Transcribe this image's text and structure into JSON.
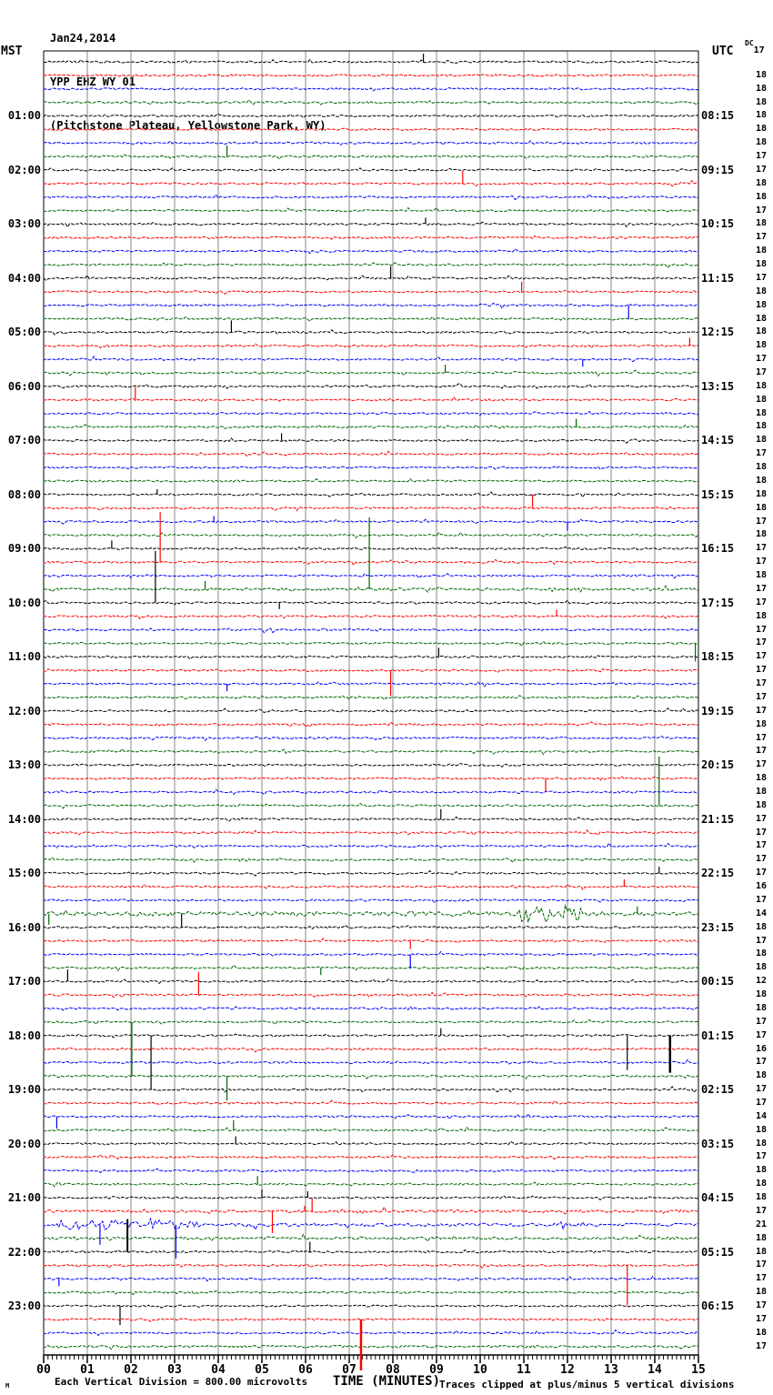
{
  "header": {
    "date": "Jan24,2014",
    "station": "YPP EHZ WY 01",
    "location": "(Pitchstone Plateau, Yellowstone Park, WY)"
  },
  "axes": {
    "left_label": "MST",
    "right_label": "UTC",
    "dc_label": "DC",
    "dc_first": "17",
    "x_title": "TIME (MINUTES)",
    "left_hours": [
      "01:00",
      "02:00",
      "03:00",
      "04:00",
      "05:00",
      "06:00",
      "07:00",
      "08:00",
      "09:00",
      "10:00",
      "11:00",
      "12:00",
      "13:00",
      "14:00",
      "15:00",
      "16:00",
      "17:00",
      "18:00",
      "19:00",
      "20:00",
      "21:00",
      "22:00",
      "23:00"
    ],
    "right_hours": [
      "08:15",
      "09:15",
      "10:15",
      "11:15",
      "12:15",
      "13:15",
      "14:15",
      "15:15",
      "16:15",
      "17:15",
      "18:15",
      "19:15",
      "20:15",
      "21:15",
      "22:15",
      "23:15",
      "00:15",
      "01:15",
      "02:15",
      "03:15",
      "04:15",
      "05:15",
      "06:15"
    ],
    "x_labels": [
      "00",
      "01",
      "02",
      "03",
      "04",
      "05",
      "06",
      "07",
      "08",
      "09",
      "10",
      "11",
      "12",
      "13",
      "14",
      "15"
    ]
  },
  "footer": {
    "glyph": "M",
    "scale": "Each Vertical Division =  800.00 microvolts",
    "clip": "Traces clipped at plus/minus 5 vertical divisions"
  },
  "chart_data": {
    "type": "line",
    "subtype": "helicorder-seismogram",
    "title": "YPP EHZ WY 01 (Pitchstone Plateau, Yellowstone Park, WY) Jan24,2014",
    "xlabel": "TIME (MINUTES)",
    "x_range": [
      0,
      15
    ],
    "rows": 96,
    "row_duration_minutes": 15,
    "first_row_start_mst": "00:00",
    "utc_offset_hours": 7.25,
    "grid": true,
    "color_cycle": [
      "black",
      "red",
      "blue",
      "green"
    ],
    "colors": {
      "black": "#000000",
      "red": "#ff0000",
      "blue": "#0000ff",
      "green": "#006600",
      "grid": "#888888"
    },
    "dc_values": [
      17,
      18,
      18,
      18,
      18,
      18,
      18,
      17,
      17,
      18,
      18,
      17,
      18,
      17,
      18,
      18,
      17,
      18,
      18,
      18,
      18,
      18,
      17,
      17,
      18,
      18,
      18,
      18,
      18,
      17,
      18,
      18,
      18,
      18,
      17,
      18,
      17,
      17,
      18,
      17,
      17,
      18,
      17,
      17,
      17,
      17,
      17,
      17,
      17,
      18,
      17,
      17,
      17,
      18,
      18,
      18,
      17,
      17,
      17,
      17,
      17,
      16,
      17,
      14,
      18,
      17,
      18,
      18,
      12,
      18,
      18,
      17,
      17,
      16,
      17,
      18,
      17,
      17,
      14,
      18,
      18,
      17,
      18,
      18,
      18,
      17,
      21,
      18,
      18,
      17,
      17,
      18,
      17,
      17,
      18,
      17
    ],
    "noisy_rows": {
      "39": 1.3,
      "63": 2.4,
      "85": 1.4,
      "86": 1.8,
      "87": 1.4,
      "95": 1.3
    },
    "bursts": [
      {
        "row": 63,
        "from": 10.85,
        "to": 12.35,
        "amp": 7
      },
      {
        "row": 86,
        "from": 0.3,
        "to": 3.6,
        "amp": 3.5
      }
    ],
    "events": [
      {
        "row": 0,
        "min": 8.7,
        "amp": 9
      },
      {
        "row": 7,
        "min": 4.2,
        "amp": 12
      },
      {
        "row": 9,
        "min": 9.6,
        "amp": 14
      },
      {
        "row": 12,
        "min": 8.75,
        "amp": 7
      },
      {
        "row": 16,
        "min": 7.95,
        "amp": 13
      },
      {
        "row": 17,
        "min": 10.95,
        "amp": 11
      },
      {
        "row": 18,
        "min": 13.4,
        "amp": -15
      },
      {
        "row": 20,
        "min": 4.3,
        "amp": 13
      },
      {
        "row": 21,
        "min": 14.8,
        "amp": 9
      },
      {
        "row": 22,
        "min": 12.35,
        "amp": -8
      },
      {
        "row": 23,
        "min": 9.2,
        "amp": 9
      },
      {
        "row": 25,
        "min": 2.1,
        "amp": 14
      },
      {
        "row": 27,
        "min": 12.2,
        "amp": 9
      },
      {
        "row": 28,
        "min": 5.45,
        "amp": 8
      },
      {
        "row": 32,
        "min": 2.6,
        "amp": 6
      },
      {
        "row": 33,
        "min": 11.2,
        "amp": 15
      },
      {
        "row": 34,
        "min": 3.9,
        "amp": 6
      },
      {
        "row": 34,
        "min": 12.0,
        "amp": -10
      },
      {
        "row": 36,
        "min": 1.56,
        "amp": 9
      },
      {
        "row": 37,
        "min": 2.67,
        "amp": 55
      },
      {
        "row": 39,
        "min": 3.7,
        "amp": 9
      },
      {
        "row": 39,
        "min": 7.46,
        "amp": 79
      },
      {
        "row": 40,
        "min": 2.56,
        "amp": 57
      },
      {
        "row": 40,
        "min": 5.4,
        "amp": -7
      },
      {
        "row": 41,
        "min": 11.75,
        "amp": 7
      },
      {
        "row": 43,
        "min": 14.93,
        "amp": -20
      },
      {
        "row": 44,
        "min": 9.05,
        "amp": 10
      },
      {
        "row": 45,
        "min": 7.95,
        "amp": -28
      },
      {
        "row": 46,
        "min": 4.2,
        "amp": -8
      },
      {
        "row": 53,
        "min": 11.5,
        "amp": -15
      },
      {
        "row": 55,
        "min": 14.1,
        "amp": 54
      },
      {
        "row": 56,
        "min": 9.1,
        "amp": 11
      },
      {
        "row": 60,
        "min": 14.1,
        "amp": 7
      },
      {
        "row": 61,
        "min": 13.3,
        "amp": 8
      },
      {
        "row": 63,
        "min": 0.12,
        "amp": -12
      },
      {
        "row": 63,
        "min": 13.6,
        "amp": 8
      },
      {
        "row": 64,
        "min": 3.16,
        "amp": 15
      },
      {
        "row": 65,
        "min": 8.4,
        "amp": -9
      },
      {
        "row": 66,
        "min": 8.4,
        "amp": -16
      },
      {
        "row": 67,
        "min": 6.35,
        "amp": -8
      },
      {
        "row": 68,
        "min": 0.55,
        "amp": 13
      },
      {
        "row": 69,
        "min": 3.55,
        "amp": 25
      },
      {
        "row": 71,
        "min": 2.02,
        "amp": -60
      },
      {
        "row": 72,
        "min": 2.46,
        "amp": -60
      },
      {
        "row": 72,
        "min": 9.1,
        "amp": 8
      },
      {
        "row": 72,
        "min": 13.37,
        "amp": -38
      },
      {
        "row": 72,
        "min": 14.35,
        "amp": -41,
        "w": 2.5
      },
      {
        "row": 75,
        "min": 4.2,
        "amp": -27
      },
      {
        "row": 78,
        "min": 0.3,
        "amp": -13
      },
      {
        "row": 79,
        "min": 4.35,
        "amp": 11
      },
      {
        "row": 80,
        "min": 4.4,
        "amp": 8
      },
      {
        "row": 83,
        "min": 4.9,
        "amp": 9
      },
      {
        "row": 84,
        "min": 5.0,
        "amp": 9
      },
      {
        "row": 84,
        "min": 6.05,
        "amp": 7
      },
      {
        "row": 85,
        "min": 5.24,
        "amp": -24
      },
      {
        "row": 85,
        "min": 5.98,
        "amp": 6
      },
      {
        "row": 85,
        "min": 6.15,
        "amp": 14
      },
      {
        "row": 86,
        "min": 1.29,
        "amp": -22
      },
      {
        "row": 86,
        "min": 3.03,
        "amp": -37
      },
      {
        "row": 88,
        "min": 1.92,
        "amp": 36,
        "w": 2
      },
      {
        "row": 88,
        "min": 6.1,
        "amp": 11
      },
      {
        "row": 89,
        "min": 13.37,
        "amp": -44
      },
      {
        "row": 90,
        "min": 0.35,
        "amp": -8
      },
      {
        "row": 92,
        "min": 1.75,
        "amp": -21
      },
      {
        "row": 93,
        "min": 7.27,
        "amp": -56,
        "w": 2.5
      }
    ]
  }
}
